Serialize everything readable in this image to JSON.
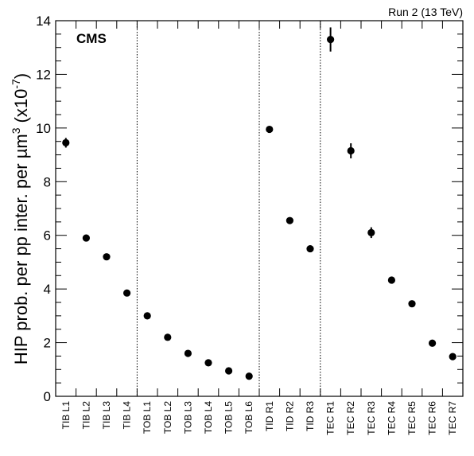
{
  "chart_data": {
    "type": "scatter",
    "experiment_label": "CMS",
    "run_label": "Run 2 (13 TeV)",
    "ylabel": "HIP prob. per pp inter. per µm",
    "ylabel_exp": "3",
    "ylabel_unit": "(x10",
    "ylabel_unit_exp": "-7",
    "ylabel_unit_close": ")",
    "ylim": [
      0,
      14
    ],
    "yticks": [
      "0",
      "2",
      "4",
      "6",
      "8",
      "10",
      "12",
      "14"
    ],
    "categories": [
      "TIB L1",
      "TIB L2",
      "TIB L3",
      "TIB L4",
      "TOB L1",
      "TOB L2",
      "TOB L3",
      "TOB L4",
      "TOB L5",
      "TOB L6",
      "TID R1",
      "TID R2",
      "TID R3",
      "TEC R1",
      "TEC R2",
      "TEC R3",
      "TEC R4",
      "TEC R5",
      "TEC R6",
      "TEC R7"
    ],
    "values": [
      9.45,
      5.9,
      5.2,
      3.85,
      3.0,
      2.2,
      1.6,
      1.25,
      0.95,
      0.75,
      9.95,
      6.55,
      5.5,
      13.3,
      9.15,
      6.1,
      4.33,
      3.45,
      1.98,
      1.48
    ],
    "errors": [
      0.18,
      0.08,
      0.08,
      0.06,
      0.06,
      0.05,
      0.04,
      0.04,
      0.03,
      0.03,
      0.08,
      0.06,
      0.06,
      0.45,
      0.28,
      0.2,
      0.13,
      0.06,
      0.05,
      0.05
    ],
    "group_separators_after_index": [
      3,
      9,
      12
    ],
    "marker_color": "#000000",
    "grid": false
  }
}
